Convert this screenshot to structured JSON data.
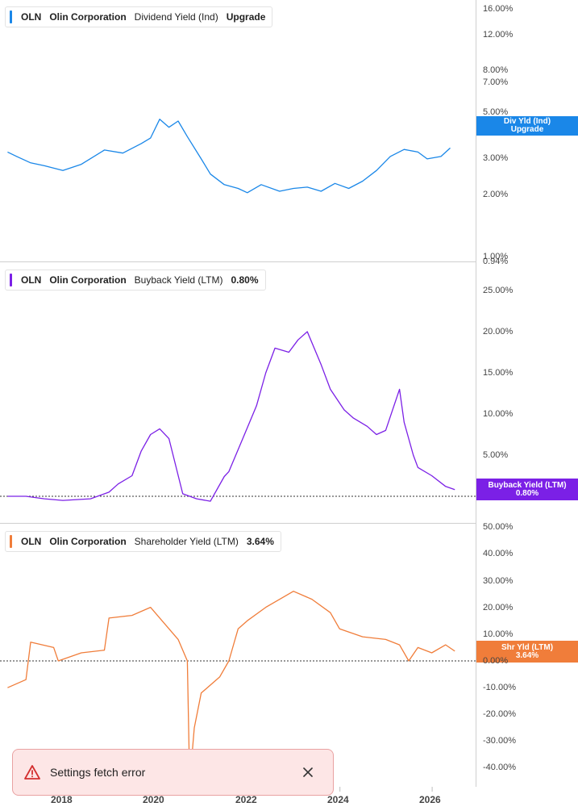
{
  "ticker": "OLN",
  "company": "Olin Corporation",
  "x_axis": {
    "labels": [
      "2018",
      "2020",
      "2022",
      "2024",
      "2026"
    ]
  },
  "panels": [
    {
      "id": "dividend",
      "metric": "Dividend Yield (Ind)",
      "legend_value": "Upgrade",
      "color": "#1a87e8",
      "badge_line1": "Div Yld (Ind)",
      "badge_line2": "Upgrade",
      "ticks": [
        "16.00%",
        "12.00%",
        "8.00%",
        "7.00%",
        "5.00%",
        "3.00%",
        "2.00%",
        "1.00%",
        "0.94%"
      ]
    },
    {
      "id": "buyback",
      "metric": "Buyback Yield (LTM)",
      "legend_value": "0.80%",
      "color": "#7b20e6",
      "badge_line1": "Buyback Yield (LTM)",
      "badge_line2": "0.80%",
      "ticks": [
        "25.00%",
        "20.00%",
        "15.00%",
        "10.00%",
        "5.00%"
      ]
    },
    {
      "id": "shareholder",
      "metric": "Shareholder Yield (LTM)",
      "legend_value": "3.64%",
      "color": "#f07d3a",
      "badge_line1": "Shr Yld (LTM)",
      "badge_line2": "3.64%",
      "ticks": [
        "50.00%",
        "40.00%",
        "30.00%",
        "20.00%",
        "10.00%",
        "0.00%",
        "-10.00%",
        "-20.00%",
        "-30.00%",
        "-40.00%"
      ]
    }
  ],
  "chart_data": [
    {
      "type": "line",
      "title": "OLN Olin Corporation Dividend Yield (Ind)",
      "yscale": "log",
      "ylim": [
        0.94,
        16
      ],
      "series": [
        {
          "name": "Dividend Yield (Ind)",
          "color": "#1a87e8",
          "x": [
            2016.8,
            2017.0,
            2017.3,
            2017.6,
            2018.0,
            2018.4,
            2018.9,
            2019.3,
            2019.7,
            2019.9,
            2020.1,
            2020.3,
            2020.5,
            2020.7,
            2021.0,
            2021.2,
            2021.5,
            2021.8,
            2022.0,
            2022.3,
            2022.7,
            2023.0,
            2023.3,
            2023.6,
            2023.9,
            2024.2,
            2024.5,
            2024.8,
            2025.1,
            2025.4,
            2025.7,
            2025.9,
            2026.2,
            2026.4
          ],
          "y": [
            3.7,
            3.3,
            2.8,
            2.6,
            2.3,
            2.7,
            3.9,
            3.6,
            4.6,
            5.3,
            8.6,
            7.0,
            8.2,
            5.5,
            3.1,
            2.1,
            1.6,
            1.45,
            1.3,
            1.6,
            1.35,
            1.45,
            1.5,
            1.35,
            1.65,
            1.45,
            1.75,
            2.3,
            3.3,
            3.95,
            3.7,
            3.1,
            3.3,
            4.1
          ]
        }
      ]
    },
    {
      "type": "line",
      "title": "OLN Olin Corporation Buyback Yield (LTM)",
      "ylim": [
        0,
        27
      ],
      "series": [
        {
          "name": "Buyback Yield (LTM)",
          "color": "#7b20e6",
          "x": [
            2016.8,
            2017.2,
            2017.6,
            2018.0,
            2018.6,
            2019.0,
            2019.2,
            2019.5,
            2019.7,
            2019.9,
            2020.1,
            2020.3,
            2020.6,
            2020.9,
            2021.2,
            2021.5,
            2021.6,
            2021.9,
            2022.2,
            2022.4,
            2022.6,
            2022.9,
            2023.1,
            2023.3,
            2023.6,
            2023.8,
            2024.1,
            2024.3,
            2024.6,
            2024.8,
            2025.0,
            2025.3,
            2025.4,
            2025.6,
            2025.7,
            2026.0,
            2026.3,
            2026.5
          ],
          "y": [
            0.0,
            0.0,
            -0.3,
            -0.5,
            -0.3,
            0.5,
            1.5,
            2.5,
            5.5,
            7.5,
            8.2,
            7.0,
            0.3,
            -0.3,
            -0.6,
            2.4,
            3.0,
            7.0,
            11.0,
            15.0,
            18.0,
            17.5,
            19.0,
            20.0,
            16.0,
            13.0,
            10.5,
            9.5,
            8.5,
            7.5,
            8.0,
            13.0,
            9.0,
            5.0,
            3.5,
            2.5,
            1.2,
            0.8
          ]
        }
      ]
    },
    {
      "type": "line",
      "title": "OLN Olin Corporation Shareholder Yield (LTM)",
      "ylim": [
        -42,
        52
      ],
      "series": [
        {
          "name": "Shareholder Yield (LTM)",
          "color": "#f07d3a",
          "x": [
            2016.8,
            2017.2,
            2017.3,
            2017.8,
            2017.9,
            2018.4,
            2018.9,
            2019.0,
            2019.5,
            2019.9,
            2020.3,
            2020.5,
            2020.7,
            2020.75,
            2020.85,
            2021.0,
            2021.4,
            2021.6,
            2021.8,
            2022.0,
            2022.4,
            2022.8,
            2023.0,
            2023.4,
            2023.8,
            2024.0,
            2024.5,
            2025.0,
            2025.3,
            2025.5,
            2025.7,
            2026.0,
            2026.3,
            2026.5
          ],
          "y": [
            -10,
            -7,
            7,
            5,
            0,
            3,
            4,
            16,
            17,
            20,
            12,
            8,
            0,
            -65,
            -25,
            -12,
            -6,
            0,
            12,
            15,
            20,
            24,
            26,
            23,
            18,
            12,
            9,
            8,
            6,
            0,
            5,
            3,
            6,
            3.64
          ]
        }
      ]
    }
  ],
  "toast": {
    "message": "Settings fetch error"
  }
}
